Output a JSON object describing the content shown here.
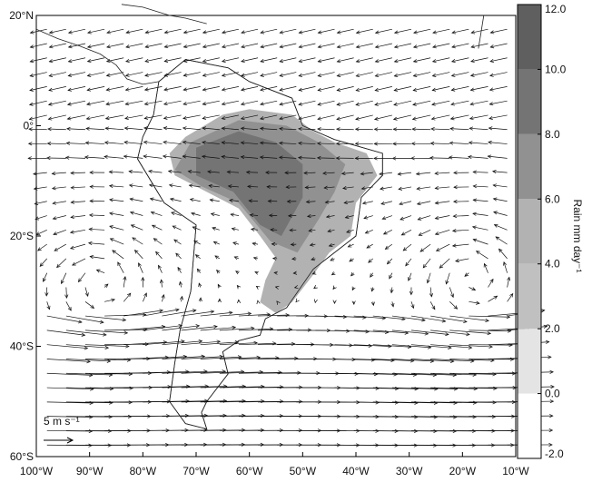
{
  "map": {
    "lon_ticks": [
      {
        "value": -100,
        "label": "100°W"
      },
      {
        "value": -90,
        "label": "90°W"
      },
      {
        "value": -80,
        "label": "80°W"
      },
      {
        "value": -70,
        "label": "70°W"
      },
      {
        "value": -60,
        "label": "60°W"
      },
      {
        "value": -50,
        "label": "50°W"
      },
      {
        "value": -40,
        "label": "40°W"
      },
      {
        "value": -30,
        "label": "30°W"
      },
      {
        "value": -20,
        "label": "20°W"
      },
      {
        "value": -10,
        "label": "10°W"
      }
    ],
    "lat_ticks": [
      {
        "value": 20,
        "label": "20°N"
      },
      {
        "value": 0,
        "label": "0°"
      },
      {
        "value": -20,
        "label": "20°S"
      },
      {
        "value": -40,
        "label": "40°S"
      },
      {
        "value": -60,
        "label": "60°S"
      }
    ],
    "scale_label": "5 m s⁻¹",
    "colorbar": {
      "label": "Rain mm day⁻¹",
      "ticks": [
        {
          "value": 12,
          "label": "12.0"
        },
        {
          "value": 10,
          "label": "10.0"
        },
        {
          "value": 8,
          "label": "8.0"
        },
        {
          "value": 6,
          "label": "6.0"
        },
        {
          "value": 4,
          "label": "4.0"
        },
        {
          "value": 2,
          "label": "2.0"
        },
        {
          "value": 0,
          "label": "0.0"
        },
        {
          "value": -2,
          "label": "-2.0"
        }
      ],
      "colors": [
        "#ffffff",
        "#e4e4e4",
        "#c0c0c0",
        "#b2b2b2",
        "#919191",
        "#747474",
        "#5f5f5f"
      ]
    }
  }
}
